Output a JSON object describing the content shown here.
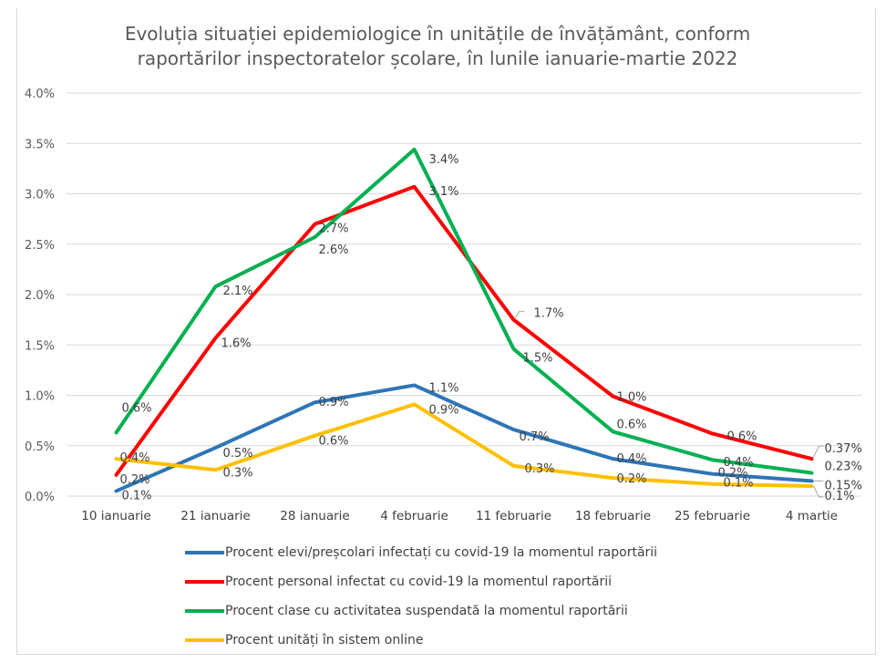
{
  "chart_data": {
    "type": "line",
    "title": "Evoluția situației epidemiologice în unitățile de învățământ, conform raportărilor inspectoratelor școlare, în lunile ianuarie-martie 2022",
    "title_lines": [
      "Evoluția situației epidemiologice în unitățile de învățământ, conform",
      "raportărilor inspectoratelor școlare, în lunile ianuarie-martie 2022"
    ],
    "xlabel": "",
    "ylabel": "",
    "categories": [
      "10 ianuarie",
      "21 ianuarie",
      "28 ianuarie",
      "4 februarie",
      "11 februarie",
      "18 februarie",
      "25 februarie",
      "4 martie"
    ],
    "ylim": [
      0,
      4.0
    ],
    "yticks": [
      0,
      0.5,
      1.0,
      1.5,
      2.0,
      2.5,
      3.0,
      3.5,
      4.0
    ],
    "ytick_labels": [
      "0.0%",
      "0.5%",
      "1.0%",
      "1.5%",
      "2.0%",
      "2.5%",
      "3.0%",
      "3.5%",
      "4.0%"
    ],
    "grid": "horizontal",
    "legend_position": "bottom",
    "series": [
      {
        "name": "Procent elevi/preșcolari infectați cu covid-19 la momentul raportării",
        "color": "#2e75b6",
        "values": [
          0.05,
          0.48,
          0.93,
          1.1,
          0.66,
          0.37,
          0.22,
          0.15
        ],
        "labels": [
          "0.1%",
          "0.5%",
          "0.9%",
          "1.1%",
          "0.7%",
          "0.4%",
          "0.2%",
          "0.15%"
        ]
      },
      {
        "name": "Procent personal infectat cu covid-19 la momentul raportării",
        "color": "#ff0000",
        "values": [
          0.21,
          1.57,
          2.7,
          3.07,
          1.75,
          0.99,
          0.62,
          0.37
        ],
        "labels": [
          "0.2%",
          "1.6%",
          "2.7%",
          "3.1%",
          "1.7%",
          "1.0%",
          "0.6%",
          "0.37%"
        ]
      },
      {
        "name": "Procent clase cu activitatea suspendată la momentul raportării",
        "color": "#00b050",
        "values": [
          0.63,
          2.08,
          2.57,
          3.44,
          1.46,
          0.64,
          0.36,
          0.23
        ],
        "labels": [
          "0.6%",
          "2.1%",
          "2.6%",
          "3.4%",
          "1.5%",
          "0.6%",
          "0.4%",
          "0.23%"
        ]
      },
      {
        "name": "Procent unități în sistem online",
        "color": "#ffc000",
        "values": [
          0.37,
          0.26,
          0.6,
          0.91,
          0.3,
          0.18,
          0.12,
          0.1
        ],
        "labels": [
          "0.4%",
          "0.3%",
          "0.6%",
          "0.9%",
          "0.3%",
          "0.2%",
          "0.1%",
          "0.1%"
        ]
      }
    ]
  }
}
